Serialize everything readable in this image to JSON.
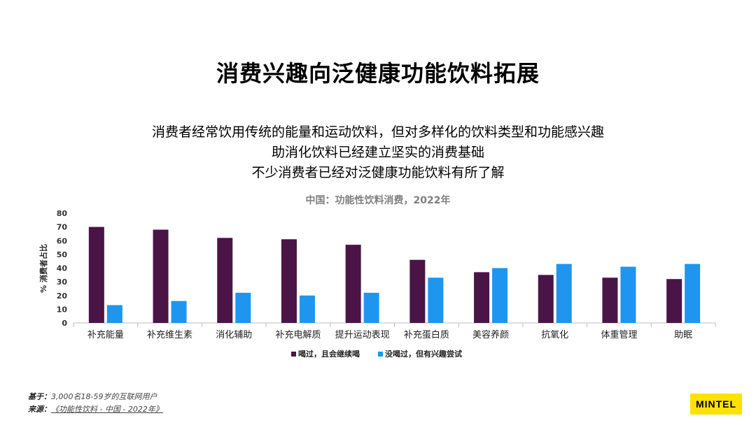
{
  "slide": {
    "title": "消费兴趣向泛健康功能饮料拓展",
    "summary": [
      "消费者经常饮用传统的能量和运动饮料，但对多样化的饮料类型和功能感兴趣",
      "助消化饮料已经建立坚实的消费基础",
      "不少消费者已经对泛健康功能饮料有所了解"
    ]
  },
  "chart_data": {
    "type": "bar",
    "title": "中国：功能性饮料消费，2022年",
    "ylabel": "% 消费者占比",
    "ylim": [
      0,
      80
    ],
    "yticks": [
      0,
      10,
      20,
      30,
      40,
      50,
      60,
      70,
      80
    ],
    "categories": [
      "补充能量",
      "补充维生素",
      "消化辅助",
      "补充电解质",
      "提升运动表现",
      "补充蛋白质",
      "美容养颜",
      "抗氧化",
      "体重管理",
      "助眠"
    ],
    "series": [
      {
        "name": "喝过，且会继续喝",
        "color": "#4a1446",
        "values": [
          70,
          68,
          62,
          61,
          57,
          46,
          37,
          35,
          33,
          32
        ]
      },
      {
        "name": "没喝过，但有兴趣尝试",
        "color": "#1e96f0",
        "values": [
          13,
          16,
          22,
          20,
          22,
          33,
          40,
          43,
          41,
          43
        ]
      }
    ],
    "grid": false,
    "legend": "bottom"
  },
  "footer": {
    "base_label": "基于：",
    "base_text": "3,000名18-59岁的互联网用户",
    "source_label": "来源：",
    "source_text": "《功能性饮料 - 中国 - 2022年》"
  },
  "brand": {
    "logo_text": "MINTEL",
    "logo_color": "#ffe100"
  }
}
